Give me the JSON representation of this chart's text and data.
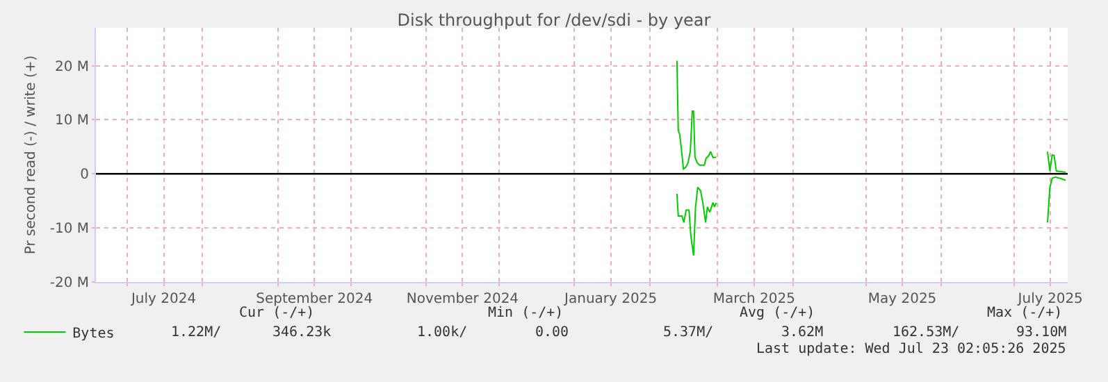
{
  "chart_data": {
    "type": "line",
    "title": "Disk throughput for /dev/sdi - by year",
    "ylabel": "Pr second read (-) / write (+)",
    "xlim": [
      "2024-06-18T02:05",
      "2025-07-23T02:05"
    ],
    "xticks": [
      {
        "value": "2024-07-01",
        "label": null
      },
      {
        "value": "2024-07-16",
        "label": "July 2024"
      },
      {
        "value": "2024-08-01",
        "label": null
      },
      {
        "value": "2024-09-01",
        "label": null
      },
      {
        "value": "2024-09-16",
        "label": "September 2024"
      },
      {
        "value": "2024-10-01",
        "label": null
      },
      {
        "value": "2024-11-01",
        "label": null
      },
      {
        "value": "2024-11-16",
        "label": "November 2024"
      },
      {
        "value": "2024-12-01",
        "label": null
      },
      {
        "value": "2025-01-01",
        "label": null
      },
      {
        "value": "2025-01-16",
        "label": "January 2025"
      },
      {
        "value": "2025-02-01",
        "label": null
      },
      {
        "value": "2025-03-01",
        "label": null
      },
      {
        "value": "2025-03-16",
        "label": "March 2025"
      },
      {
        "value": "2025-04-01",
        "label": null
      },
      {
        "value": "2025-05-01",
        "label": null
      },
      {
        "value": "2025-05-16",
        "label": "May 2025"
      },
      {
        "value": "2025-06-01",
        "label": null
      },
      {
        "value": "2025-07-01",
        "label": null
      },
      {
        "value": "2025-07-16",
        "label": "July 2025"
      }
    ],
    "ylim": [
      -20,
      27
    ],
    "yticks": [
      {
        "value": -20,
        "label": "-20 M"
      },
      {
        "value": -10,
        "label": "-10 M"
      },
      0,
      {
        "value": 10,
        "label": "10 M"
      },
      {
        "value": 20,
        "label": "20 M"
      }
    ],
    "grid": true,
    "legend": "bottom left",
    "marker": "none",
    "line_style": "solid",
    "series": [
      {
        "name": "Bytes",
        "color": "#00cc00",
        "x": [
          "2025-02-12T06:00",
          "2025-02-12T19:00",
          "2025-02-13T09:00",
          "2025-02-13T23:00",
          "2025-02-14T22:00",
          "2025-02-15T21:00",
          "2025-02-16T19:00",
          "2025-02-17T18:00",
          "2025-02-18T13:00",
          "2025-02-19T02:00",
          "2025-02-19T16:00",
          "2025-02-20T15:00",
          "2025-02-21T14:00",
          "2025-02-23T12:00",
          "2025-02-24T06:00",
          "2025-02-25T05:00",
          "2025-02-26T03:00",
          "2025-02-27T02:00",
          "2025-02-28T10:00",
          "2025-05-01",
          "2025-07-14T19:00",
          "2025-07-15T18:00",
          "2025-07-16T17:00",
          "2025-07-17T12:00",
          "2025-07-18T10:00",
          "2025-07-22T06:00"
        ],
        "values": [
          20.9,
          8.0,
          7.3,
          5.1,
          0.9,
          1.2,
          2.0,
          4.1,
          11.6,
          11.6,
          3.1,
          2.0,
          1.6,
          1.6,
          2.9,
          3.3,
          4.1,
          3.0,
          3.1,
          null,
          4.1,
          0.5,
          3.5,
          3.4,
          0.5,
          0.3
        ]
      },
      {
        "color": "#00cc00",
        "x": [
          "2025-02-12T06:00",
          "2025-02-12T19:00",
          "2025-02-14T08:00",
          "2025-02-15T02:00",
          "2025-02-16T01:00",
          "2025-02-17T05:00",
          "2025-02-17T23:00",
          "2025-02-19T02:00",
          "2025-02-19T21:00",
          "2025-02-20T19:00",
          "2025-02-21T23:00",
          "2025-02-22T22:00",
          "2025-02-24T01:00",
          "2025-02-24T19:00",
          "2025-02-25T18:00",
          "2025-02-27T02:00",
          "2025-02-27T16:00",
          "2025-02-28T10:00",
          "2025-05-01",
          "2025-07-14T19:00",
          "2025-07-15T18:00",
          "2025-07-16T17:00",
          "2025-07-18T01:00",
          "2025-07-20T12:00",
          "2025-07-22T06:00"
        ],
        "values": [
          -3.7,
          -7.8,
          -7.8,
          -9.0,
          -6.7,
          -6.7,
          -11.4,
          -15.1,
          -6.3,
          -2.5,
          -3.1,
          -5.4,
          -9.0,
          -6.1,
          -7.1,
          -5.3,
          -6.1,
          -5.4,
          null,
          -9.0,
          -2.5,
          -0.8,
          -0.6,
          -0.9,
          -1.2
        ]
      }
    ],
    "ref_lines": [
      {
        "axis": "y",
        "value": 0,
        "color": "#000000"
      }
    ],
    "annotations": [
      "Cur (-/+)",
      "Min (-/+)",
      "Avg (-/+)",
      "Max (-/+)",
      "1.22M/",
      "346.23k",
      "1.00k/",
      "0.00",
      "5.37M/",
      "3.62M",
      "162.53M/",
      "93.10M",
      "Last update: Wed Jul 23 02:05:26 2025"
    ]
  }
}
